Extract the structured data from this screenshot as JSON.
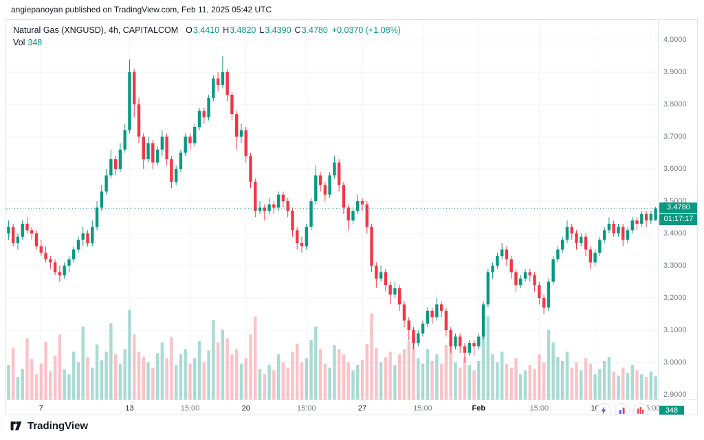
{
  "page": {
    "caption": "angiepanoyan published on TradingView.com, Feb 11, 2025 05:42 UTC"
  },
  "header": {
    "symbol_line": "Natural Gas (XNGUSD), 4h, CAPITALCOM",
    "ohlc": [
      {
        "label": "O",
        "value": "3.4410"
      },
      {
        "label": "H",
        "value": "3.4820"
      },
      {
        "label": "L",
        "value": "3.4390"
      },
      {
        "label": "C",
        "value": "3.4780"
      }
    ],
    "change": "+0.0370 (+1.08%)",
    "vol_label": "Vol",
    "vol_value": "348"
  },
  "price_scale": {
    "labels": [
      "4.0000",
      "3.9000",
      "3.8000",
      "3.7000",
      "3.6000",
      "3.5000",
      "3.4000",
      "3.3000",
      "3.2000",
      "3.1000",
      "3.0000",
      "2.9000"
    ],
    "last_price_label": "3.4780",
    "countdown": "01:17:17",
    "vol_axis_badge": "348"
  },
  "time_scale": {
    "labels": [
      {
        "text": "7",
        "i": 7,
        "major": true,
        "bold": false
      },
      {
        "text": "13",
        "i": 26,
        "major": true,
        "bold": false
      },
      {
        "text": "15:00",
        "i": 39,
        "major": false,
        "bold": false
      },
      {
        "text": "20",
        "i": 51,
        "major": true,
        "bold": false
      },
      {
        "text": "15:00",
        "i": 64,
        "major": false,
        "bold": false
      },
      {
        "text": "27",
        "i": 76,
        "major": true,
        "bold": false
      },
      {
        "text": "15:00",
        "i": 89,
        "major": false,
        "bold": false
      },
      {
        "text": "Feb",
        "i": 101,
        "major": true,
        "bold": true
      },
      {
        "text": "15:00",
        "i": 114,
        "major": false,
        "bold": false
      },
      {
        "text": "10",
        "i": 126,
        "major": true,
        "bold": false
      },
      {
        "text": "15:00",
        "i": 138,
        "major": false,
        "bold": false
      }
    ]
  },
  "overlay": {
    "icons": [
      "boost-lightning-icon",
      "chart-bars-blue-red-icon",
      "chart-bars-red-icon"
    ]
  },
  "footer": {
    "brand": "TradingView",
    "logo_icon": "tradingview-logo-icon"
  },
  "colors": {
    "up": "#089981",
    "down": "#F23645",
    "vol_up": "rgba(8,153,129,0.35)",
    "vol_down": "rgba(242,54,69,0.30)",
    "grid": "#f0f3fa",
    "accent": "#089981",
    "axis_text": "#787b86",
    "text": "#131722"
  },
  "chart_data": {
    "type": "candlestick+volume",
    "title": "Natural Gas (XNGUSD), 4h, CAPITALCOM",
    "interval": "4h",
    "ylim": [
      2.885,
      4.062
    ],
    "grid": true,
    "last_price": 3.478,
    "vol_max": 1500,
    "candles": [
      [
        3.4,
        3.44,
        3.38,
        3.42
      ],
      [
        3.42,
        3.43,
        3.36,
        3.37
      ],
      [
        3.37,
        3.4,
        3.35,
        3.39
      ],
      [
        3.39,
        3.44,
        3.38,
        3.43
      ],
      [
        3.43,
        3.45,
        3.4,
        3.41
      ],
      [
        3.41,
        3.42,
        3.38,
        3.4
      ],
      [
        3.4,
        3.41,
        3.35,
        3.36
      ],
      [
        3.36,
        3.38,
        3.33,
        3.34
      ],
      [
        3.34,
        3.36,
        3.31,
        3.32
      ],
      [
        3.32,
        3.33,
        3.29,
        3.31
      ],
      [
        3.31,
        3.32,
        3.27,
        3.28
      ],
      [
        3.28,
        3.3,
        3.25,
        3.27
      ],
      [
        3.27,
        3.31,
        3.26,
        3.3
      ],
      [
        3.3,
        3.33,
        3.28,
        3.32
      ],
      [
        3.32,
        3.36,
        3.31,
        3.35
      ],
      [
        3.35,
        3.39,
        3.34,
        3.38
      ],
      [
        3.38,
        3.42,
        3.36,
        3.4
      ],
      [
        3.4,
        3.41,
        3.36,
        3.37
      ],
      [
        3.37,
        3.44,
        3.36,
        3.42
      ],
      [
        3.42,
        3.5,
        3.41,
        3.48
      ],
      [
        3.48,
        3.55,
        3.47,
        3.53
      ],
      [
        3.53,
        3.6,
        3.52,
        3.58
      ],
      [
        3.58,
        3.66,
        3.57,
        3.63
      ],
      [
        3.63,
        3.64,
        3.58,
        3.6
      ],
      [
        3.6,
        3.68,
        3.59,
        3.66
      ],
      [
        3.66,
        3.74,
        3.65,
        3.72
      ],
      [
        3.72,
        3.94,
        3.71,
        3.9
      ],
      [
        3.9,
        3.91,
        3.76,
        3.8
      ],
      [
        3.8,
        3.82,
        3.68,
        3.7
      ],
      [
        3.7,
        3.71,
        3.6,
        3.63
      ],
      [
        3.63,
        3.7,
        3.62,
        3.68
      ],
      [
        3.68,
        3.69,
        3.6,
        3.62
      ],
      [
        3.62,
        3.67,
        3.61,
        3.66
      ],
      [
        3.66,
        3.72,
        3.64,
        3.7
      ],
      [
        3.7,
        3.71,
        3.61,
        3.63
      ],
      [
        3.63,
        3.64,
        3.54,
        3.56
      ],
      [
        3.56,
        3.61,
        3.55,
        3.6
      ],
      [
        3.6,
        3.66,
        3.59,
        3.65
      ],
      [
        3.65,
        3.71,
        3.64,
        3.7
      ],
      [
        3.7,
        3.71,
        3.66,
        3.68
      ],
      [
        3.68,
        3.74,
        3.67,
        3.73
      ],
      [
        3.73,
        3.79,
        3.72,
        3.78
      ],
      [
        3.78,
        3.79,
        3.74,
        3.76
      ],
      [
        3.76,
        3.83,
        3.75,
        3.82
      ],
      [
        3.82,
        3.89,
        3.81,
        3.88
      ],
      [
        3.88,
        3.9,
        3.84,
        3.86
      ],
      [
        3.86,
        3.95,
        3.85,
        3.9
      ],
      [
        3.9,
        3.91,
        3.81,
        3.83
      ],
      [
        3.83,
        3.84,
        3.75,
        3.77
      ],
      [
        3.77,
        3.78,
        3.66,
        3.7
      ],
      [
        3.7,
        3.74,
        3.68,
        3.72
      ],
      [
        3.72,
        3.73,
        3.62,
        3.64
      ],
      [
        3.64,
        3.65,
        3.54,
        3.56
      ],
      [
        3.56,
        3.57,
        3.45,
        3.47
      ],
      [
        3.47,
        3.5,
        3.46,
        3.48
      ],
      [
        3.48,
        3.49,
        3.44,
        3.47
      ],
      [
        3.47,
        3.51,
        3.46,
        3.49
      ],
      [
        3.49,
        3.5,
        3.46,
        3.48
      ],
      [
        3.48,
        3.53,
        3.47,
        3.52
      ],
      [
        3.52,
        3.53,
        3.48,
        3.5
      ],
      [
        3.5,
        3.51,
        3.45,
        3.47
      ],
      [
        3.47,
        3.48,
        3.39,
        3.41
      ],
      [
        3.41,
        3.42,
        3.35,
        3.37
      ],
      [
        3.37,
        3.39,
        3.34,
        3.36
      ],
      [
        3.36,
        3.43,
        3.35,
        3.42
      ],
      [
        3.42,
        3.51,
        3.41,
        3.5
      ],
      [
        3.5,
        3.61,
        3.49,
        3.58
      ],
      [
        3.58,
        3.59,
        3.53,
        3.55
      ],
      [
        3.55,
        3.56,
        3.5,
        3.52
      ],
      [
        3.52,
        3.59,
        3.51,
        3.58
      ],
      [
        3.58,
        3.64,
        3.57,
        3.62
      ],
      [
        3.62,
        3.63,
        3.53,
        3.55
      ],
      [
        3.55,
        3.56,
        3.46,
        3.48
      ],
      [
        3.48,
        3.49,
        3.41,
        3.44
      ],
      [
        3.44,
        3.48,
        3.43,
        3.47
      ],
      [
        3.47,
        3.52,
        3.46,
        3.5
      ],
      [
        3.5,
        3.51,
        3.47,
        3.49
      ],
      [
        3.49,
        3.5,
        3.4,
        3.42
      ],
      [
        3.42,
        3.43,
        3.28,
        3.3
      ],
      [
        3.3,
        3.31,
        3.23,
        3.26
      ],
      [
        3.26,
        3.3,
        3.25,
        3.28
      ],
      [
        3.28,
        3.29,
        3.22,
        3.24
      ],
      [
        3.24,
        3.25,
        3.18,
        3.21
      ],
      [
        3.21,
        3.25,
        3.2,
        3.23
      ],
      [
        3.23,
        3.24,
        3.16,
        3.18
      ],
      [
        3.18,
        3.19,
        3.11,
        3.13
      ],
      [
        3.13,
        3.14,
        3.07,
        3.1
      ],
      [
        3.1,
        3.11,
        3.04,
        3.06
      ],
      [
        3.06,
        3.1,
        3.05,
        3.09
      ],
      [
        3.09,
        3.13,
        3.08,
        3.12
      ],
      [
        3.12,
        3.17,
        3.11,
        3.16
      ],
      [
        3.16,
        3.17,
        3.12,
        3.14
      ],
      [
        3.14,
        3.2,
        3.13,
        3.18
      ],
      [
        3.18,
        3.19,
        3.14,
        3.16
      ],
      [
        3.16,
        3.17,
        3.08,
        3.1
      ],
      [
        3.1,
        3.11,
        3.03,
        3.05
      ],
      [
        3.05,
        3.09,
        3.04,
        3.08
      ],
      [
        3.08,
        3.09,
        3.03,
        3.05
      ],
      [
        3.05,
        3.06,
        3.0,
        3.03
      ],
      [
        3.03,
        3.07,
        3.02,
        3.06
      ],
      [
        3.06,
        3.07,
        3.02,
        3.05
      ],
      [
        3.05,
        3.09,
        3.04,
        3.08
      ],
      [
        3.08,
        3.19,
        3.07,
        3.18
      ],
      [
        3.18,
        3.29,
        3.17,
        3.28
      ],
      [
        3.28,
        3.31,
        3.26,
        3.3
      ],
      [
        3.3,
        3.34,
        3.29,
        3.33
      ],
      [
        3.33,
        3.37,
        3.32,
        3.35
      ],
      [
        3.35,
        3.36,
        3.3,
        3.32
      ],
      [
        3.32,
        3.33,
        3.26,
        3.28
      ],
      [
        3.28,
        3.29,
        3.22,
        3.24
      ],
      [
        3.24,
        3.27,
        3.23,
        3.26
      ],
      [
        3.26,
        3.29,
        3.25,
        3.28
      ],
      [
        3.28,
        3.29,
        3.25,
        3.27
      ],
      [
        3.27,
        3.28,
        3.22,
        3.24
      ],
      [
        3.24,
        3.25,
        3.18,
        3.2
      ],
      [
        3.2,
        3.21,
        3.15,
        3.17
      ],
      [
        3.17,
        3.26,
        3.16,
        3.25
      ],
      [
        3.25,
        3.33,
        3.24,
        3.32
      ],
      [
        3.32,
        3.36,
        3.31,
        3.35
      ],
      [
        3.35,
        3.39,
        3.34,
        3.38
      ],
      [
        3.38,
        3.44,
        3.37,
        3.42
      ],
      [
        3.42,
        3.43,
        3.38,
        3.4
      ],
      [
        3.4,
        3.41,
        3.35,
        3.37
      ],
      [
        3.37,
        3.4,
        3.36,
        3.39
      ],
      [
        3.39,
        3.4,
        3.33,
        3.35
      ],
      [
        3.35,
        3.36,
        3.29,
        3.31
      ],
      [
        3.31,
        3.35,
        3.3,
        3.34
      ],
      [
        3.34,
        3.39,
        3.33,
        3.38
      ],
      [
        3.38,
        3.42,
        3.37,
        3.41
      ],
      [
        3.41,
        3.45,
        3.4,
        3.43
      ],
      [
        3.43,
        3.44,
        3.39,
        3.4
      ],
      [
        3.4,
        3.43,
        3.39,
        3.42
      ],
      [
        3.42,
        3.43,
        3.36,
        3.38
      ],
      [
        3.38,
        3.42,
        3.37,
        3.41
      ],
      [
        3.41,
        3.45,
        3.4,
        3.44
      ],
      [
        3.44,
        3.45,
        3.41,
        3.43
      ],
      [
        3.43,
        3.47,
        3.42,
        3.46
      ],
      [
        3.46,
        3.47,
        3.42,
        3.44
      ],
      [
        3.44,
        3.47,
        3.43,
        3.46
      ],
      [
        3.441,
        3.482,
        3.439,
        3.478
      ]
    ],
    "volumes": [
      520,
      780,
      340,
      460,
      920,
      610,
      380,
      540,
      870,
      430,
      660,
      980,
      450,
      380,
      720,
      560,
      1100,
      640,
      480,
      830,
      590,
      720,
      1150,
      680,
      540,
      760,
      1350,
      980,
      720,
      640,
      560,
      480,
      700,
      860,
      620,
      940,
      520,
      680,
      760,
      540,
      620,
      880,
      560,
      740,
      1200,
      860,
      1050,
      920,
      680,
      760,
      540,
      620,
      980,
      1250,
      460,
      380,
      520,
      440,
      680,
      560,
      480,
      720,
      840,
      560,
      620,
      900,
      1100,
      760,
      540,
      480,
      820,
      760,
      680,
      560,
      440,
      520,
      600,
      840,
      1300,
      780,
      560,
      640,
      720,
      520,
      680,
      760,
      880,
      940,
      620,
      540,
      760,
      580,
      680,
      540,
      820,
      960,
      560,
      480,
      640,
      520,
      440,
      580,
      1150,
      1250,
      680,
      560,
      720,
      540,
      480,
      620,
      380,
      440,
      520,
      460,
      680,
      560,
      1050,
      860,
      640,
      580,
      720,
      480,
      560,
      440,
      620,
      540,
      380,
      460,
      580,
      640,
      420,
      360,
      480,
      400,
      520,
      440,
      380,
      340,
      420,
      348
    ]
  }
}
